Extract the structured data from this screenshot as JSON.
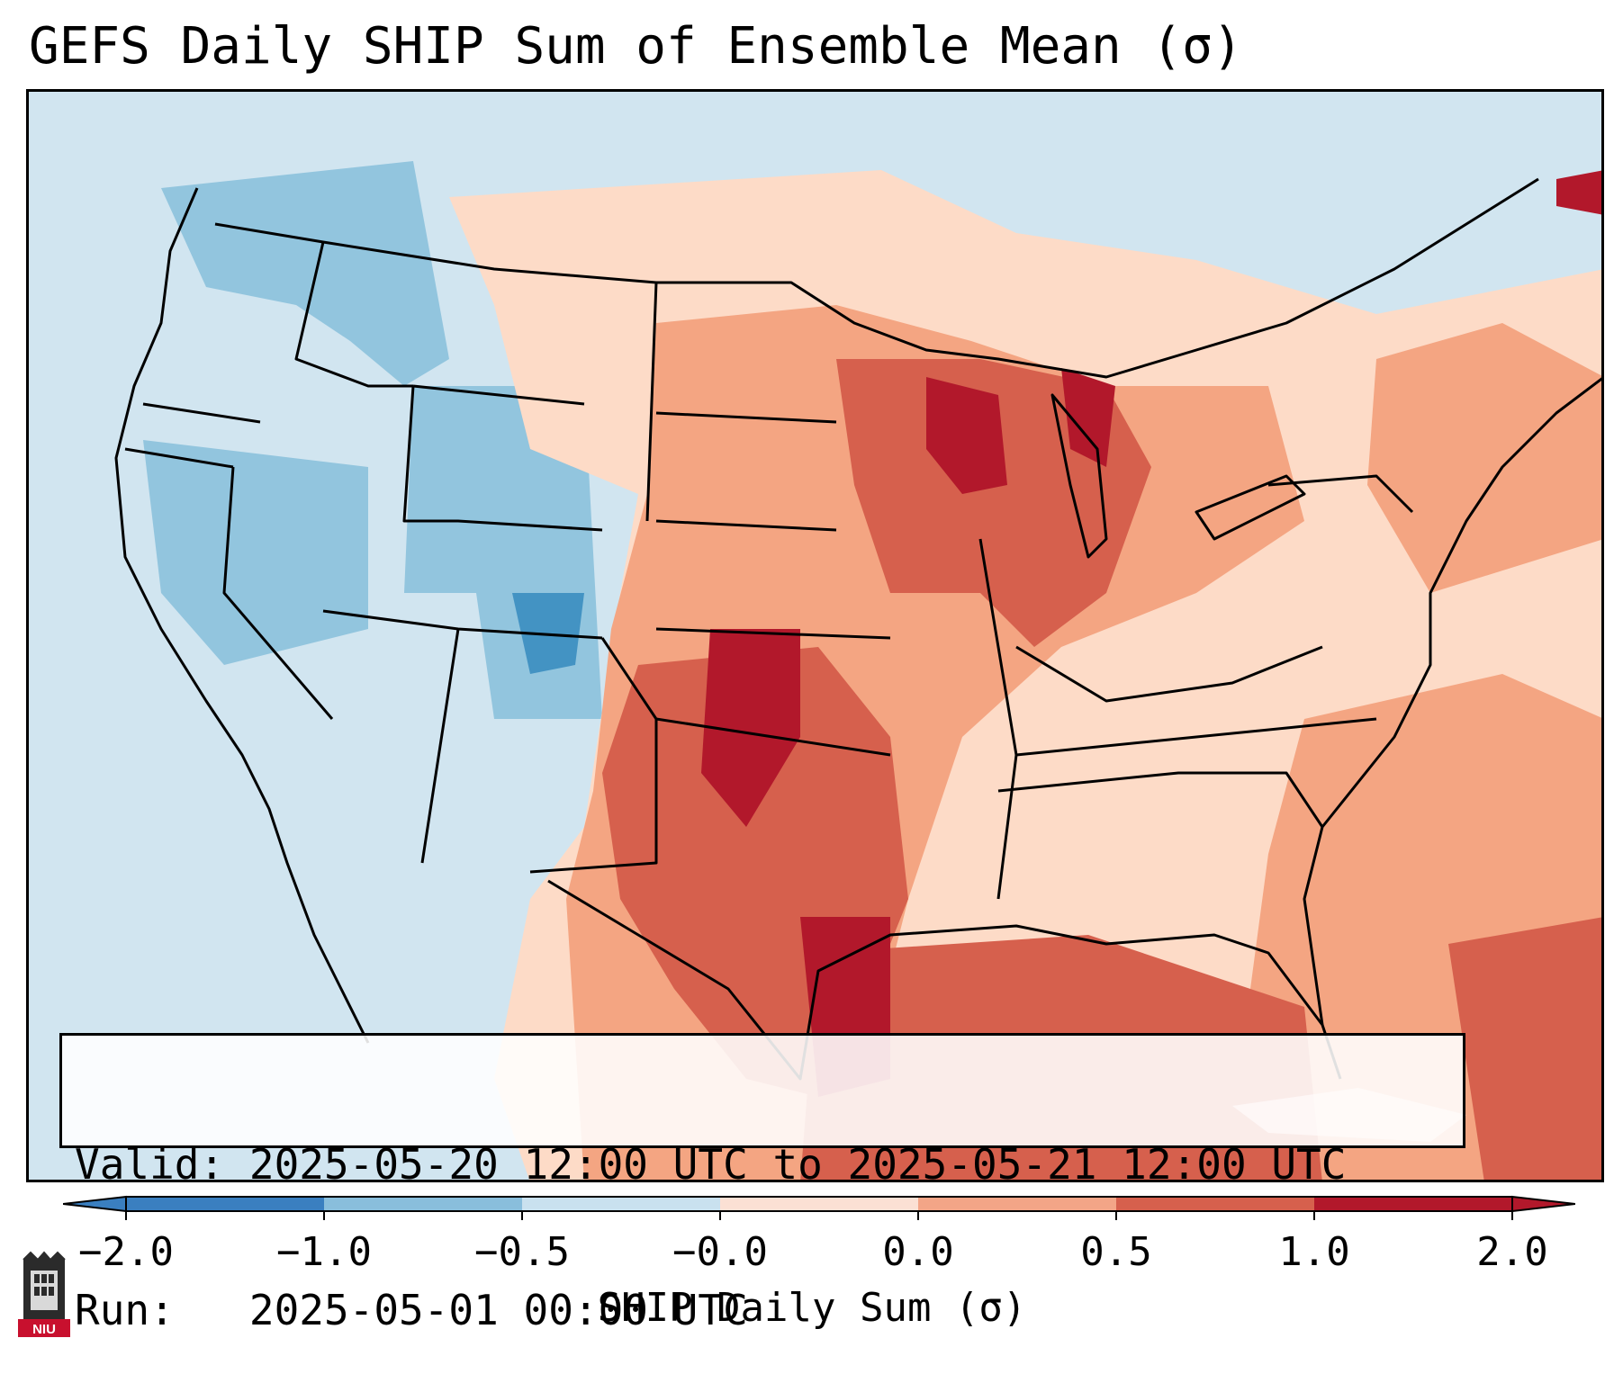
{
  "title": "GEFS Daily SHIP Sum of Ensemble Mean (σ)",
  "info": {
    "valid_label": "Valid:",
    "valid_value": "2025-05-20 12:00 UTC to 2025-05-21 12:00 UTC",
    "run_label": "Run:",
    "run_value": "2025-05-01 00:00 UTC"
  },
  "colorbar": {
    "label": "SHIP Daily Sum (σ)",
    "ticks": [
      "−2.0",
      "−1.0",
      "−0.5",
      "−0.0",
      "0.0",
      "0.5",
      "1.0",
      "2.0"
    ],
    "colors": [
      "#3a7fc0",
      "#89bedc",
      "#c9e1ef",
      "#fbe0d4",
      "#f3a587",
      "#d6604d",
      "#b2182b"
    ],
    "extend": "both"
  },
  "logo": {
    "text": "NIU"
  },
  "palette": {
    "ocean": "#d1e5f0",
    "land_blue": "#d1e5f0",
    "land_mid_blue": "#92c5de",
    "land_dark_blue": "#4393c3",
    "warm_light": "#fddbc7",
    "warm_mid": "#f4a582",
    "warm_strong": "#d6604d",
    "warm_max": "#b2182b"
  }
}
